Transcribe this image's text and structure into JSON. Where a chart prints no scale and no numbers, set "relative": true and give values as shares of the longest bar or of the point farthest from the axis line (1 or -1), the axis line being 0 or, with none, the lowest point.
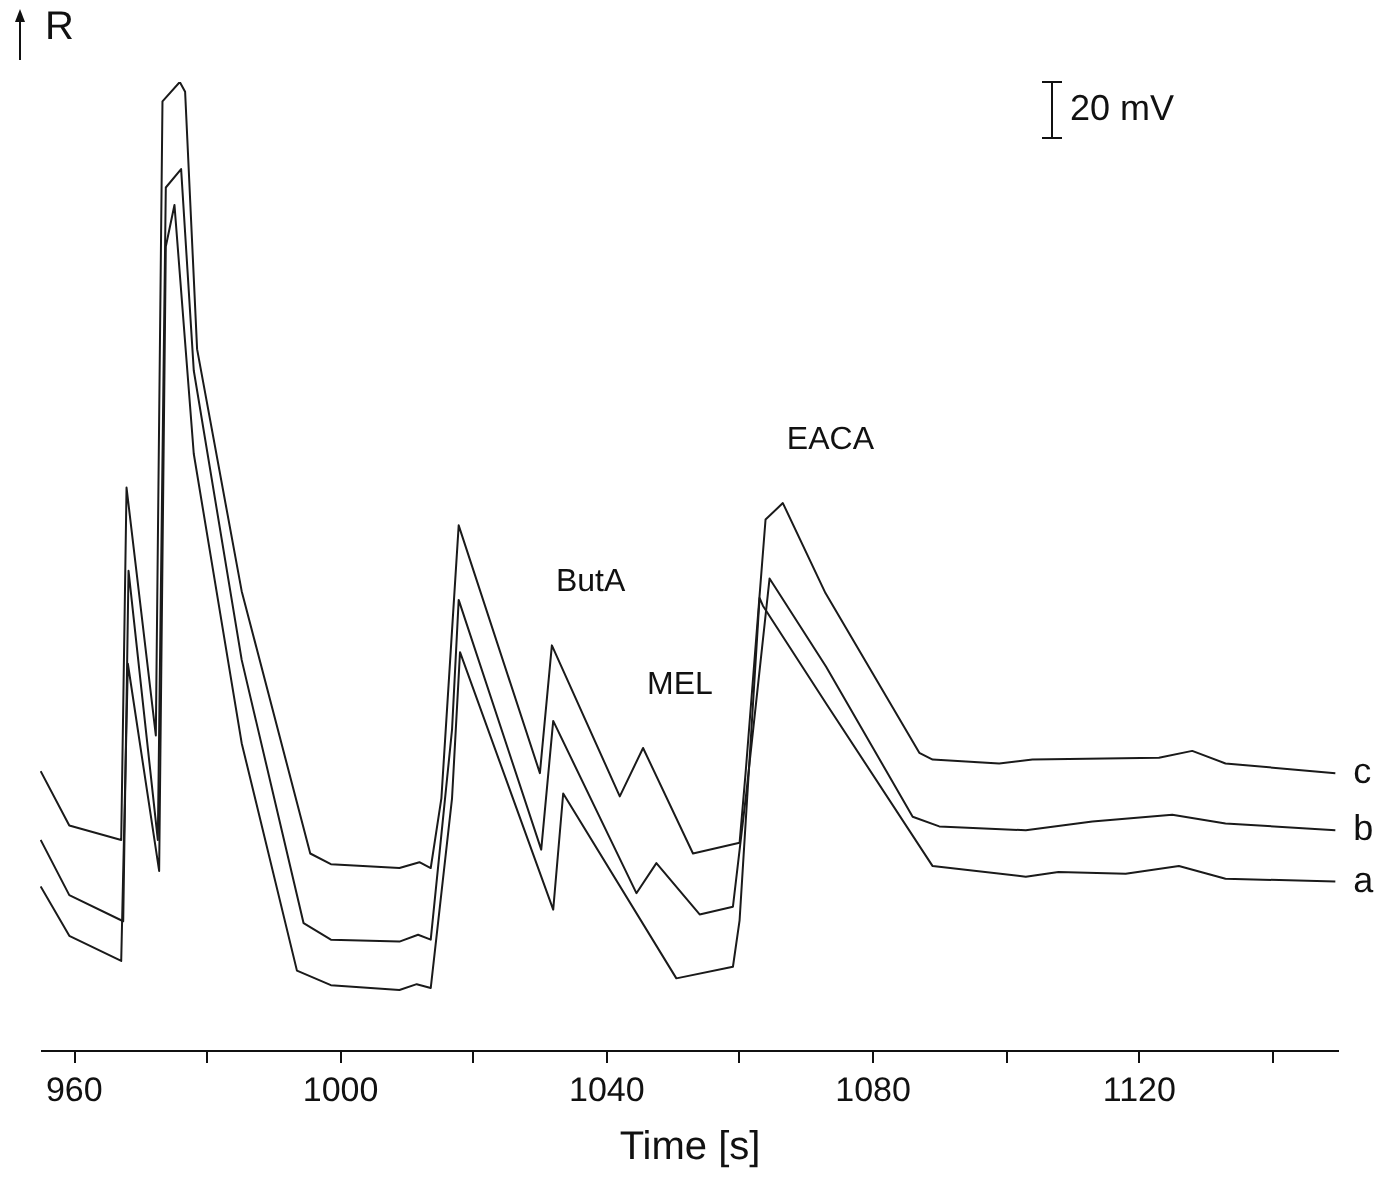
{
  "chart_data": {
    "type": "line",
    "relative": true,
    "xlabel": "Time [s]",
    "ylabel": "R",
    "xlim": [
      955,
      1150
    ],
    "xticks": [
      960,
      {
        "value": 980,
        "label": null
      },
      1000,
      {
        "value": 1020,
        "label": null
      },
      1040,
      {
        "value": 1060,
        "label": null
      },
      1080,
      {
        "value": 1100,
        "label": null
      },
      1120,
      {
        "value": 1140,
        "label": null
      }
    ],
    "legend": false,
    "grid": false,
    "marker": "none",
    "line_style": "solid",
    "annotations": [
      {
        "text": "ButA",
        "x": 1031.9,
        "y": 0.418
      },
      {
        "text": "MEL",
        "x": 1045.6,
        "y": 0.312
      },
      {
        "text": "EACA",
        "x": 1066.6,
        "y": 0.565
      },
      "20 mV"
    ],
    "series": [
      {
        "name": "a",
        "color": "#1a1a1a",
        "x": [
          955.1,
          959.4,
          967.2,
          968.2,
          972.9,
          973.9,
          975.2,
          978.1,
          985.3,
          993.6,
          998.7,
          1009,
          1011.6,
          1013.7,
          1016.9,
          1018.1,
          1032.1,
          1033.6,
          1050.6,
          1059.1,
          1060.1,
          1063.1,
          1063.6,
          1073.1,
          1089.1,
          1103.1,
          1108,
          1118.1,
          1126.1,
          1133.1,
          1149.6
        ],
        "values": [
          0.169,
          0.118,
          0.092,
          0.399,
          0.185,
          0.83,
          0.873,
          0.616,
          0.317,
          0.082,
          0.067,
          0.062,
          0.068,
          0.064,
          0.26,
          0.411,
          0.145,
          0.265,
          0.074,
          0.086,
          0.134,
          0.467,
          0.459,
          0.358,
          0.19,
          0.179,
          0.184,
          0.182,
          0.19,
          0.177,
          0.174
        ]
      },
      {
        "name": "b",
        "color": "#1a1a1a",
        "x": [
          955.1,
          959.4,
          967.5,
          968.3,
          972.7,
          973.9,
          976.2,
          978.1,
          985.3,
          994.6,
          998.7,
          1009,
          1011.8,
          1013.7,
          1016.9,
          1017.9,
          1030.3,
          1032.1,
          1044.6,
          1047.6,
          1054.1,
          1059.1,
          1061.1,
          1064.6,
          1073.1,
          1086.1,
          1090.1,
          1103.1,
          1113.1,
          1125.1,
          1133.1,
          1149.6
        ],
        "values": [
          0.217,
          0.16,
          0.133,
          0.495,
          0.217,
          0.891,
          0.91,
          0.702,
          0.403,
          0.131,
          0.114,
          0.112,
          0.119,
          0.114,
          0.331,
          0.465,
          0.207,
          0.34,
          0.162,
          0.193,
          0.14,
          0.148,
          0.265,
          0.487,
          0.396,
          0.241,
          0.231,
          0.227,
          0.236,
          0.243,
          0.234,
          0.227
        ]
      },
      {
        "name": "c",
        "color": "#1a1a1a",
        "x": [
          955.1,
          959.4,
          967.2,
          968,
          972.4,
          973.4,
          976,
          976.8,
          978.6,
          985.3,
          995.6,
          998.7,
          1009,
          1012,
          1013.7,
          1015.3,
          1017.9,
          1030.1,
          1031.9,
          1042.1,
          1045.6,
          1053.1,
          1060.1,
          1061,
          1064,
          1066.6,
          1073,
          1087.1,
          1089.1,
          1099.1,
          1104.1,
          1123.1,
          1128.1,
          1133.1,
          1149.6
        ],
        "values": [
          0.288,
          0.232,
          0.217,
          0.581,
          0.325,
          0.98,
          1,
          0.99,
          0.724,
          0.474,
          0.203,
          0.192,
          0.188,
          0.194,
          0.188,
          0.26,
          0.542,
          0.286,
          0.418,
          0.262,
          0.312,
          0.203,
          0.214,
          0.286,
          0.548,
          0.565,
          0.472,
          0.307,
          0.3,
          0.296,
          0.3,
          0.302,
          0.309,
          0.296,
          0.286
        ]
      }
    ]
  }
}
